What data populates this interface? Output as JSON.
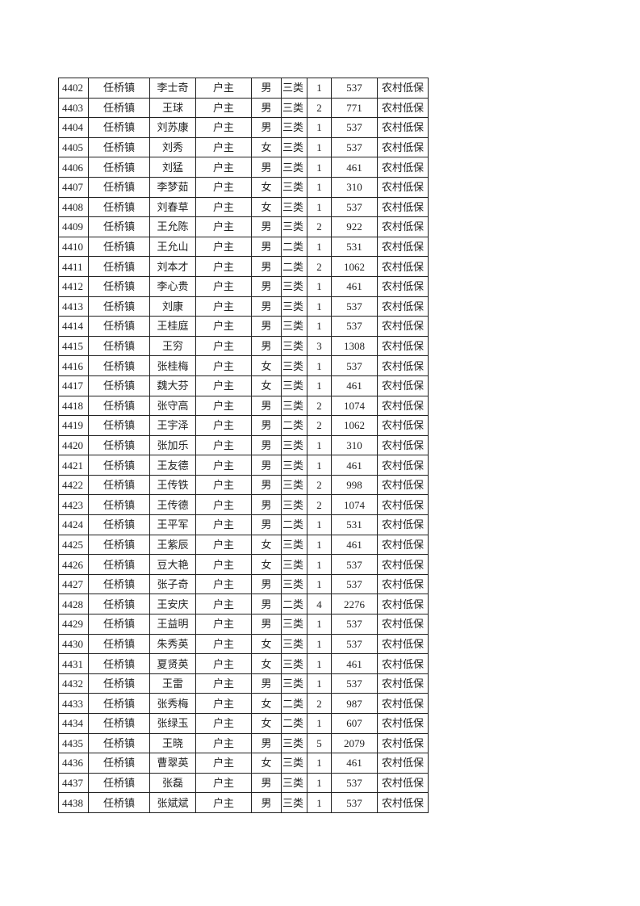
{
  "table": {
    "rows": [
      [
        "4402",
        "任桥镇",
        "李士奇",
        "户主",
        "男",
        "三类",
        "1",
        "537",
        "农村低保"
      ],
      [
        "4403",
        "任桥镇",
        "王球",
        "户主",
        "男",
        "三类",
        "2",
        "771",
        "农村低保"
      ],
      [
        "4404",
        "任桥镇",
        "刘苏康",
        "户主",
        "男",
        "三类",
        "1",
        "537",
        "农村低保"
      ],
      [
        "4405",
        "任桥镇",
        "刘秀",
        "户主",
        "女",
        "三类",
        "1",
        "537",
        "农村低保"
      ],
      [
        "4406",
        "任桥镇",
        "刘猛",
        "户主",
        "男",
        "三类",
        "1",
        "461",
        "农村低保"
      ],
      [
        "4407",
        "任桥镇",
        "李梦茹",
        "户主",
        "女",
        "三类",
        "1",
        "310",
        "农村低保"
      ],
      [
        "4408",
        "任桥镇",
        "刘春草",
        "户主",
        "女",
        "三类",
        "1",
        "537",
        "农村低保"
      ],
      [
        "4409",
        "任桥镇",
        "王允陈",
        "户主",
        "男",
        "三类",
        "2",
        "922",
        "农村低保"
      ],
      [
        "4410",
        "任桥镇",
        "王允山",
        "户主",
        "男",
        "二类",
        "1",
        "531",
        "农村低保"
      ],
      [
        "4411",
        "任桥镇",
        "刘本才",
        "户主",
        "男",
        "二类",
        "2",
        "1062",
        "农村低保"
      ],
      [
        "4412",
        "任桥镇",
        "李心贵",
        "户主",
        "男",
        "三类",
        "1",
        "461",
        "农村低保"
      ],
      [
        "4413",
        "任桥镇",
        "刘康",
        "户主",
        "男",
        "三类",
        "1",
        "537",
        "农村低保"
      ],
      [
        "4414",
        "任桥镇",
        "王桂庭",
        "户主",
        "男",
        "三类",
        "1",
        "537",
        "农村低保"
      ],
      [
        "4415",
        "任桥镇",
        "王穷",
        "户主",
        "男",
        "三类",
        "3",
        "1308",
        "农村低保"
      ],
      [
        "4416",
        "任桥镇",
        "张桂梅",
        "户主",
        "女",
        "三类",
        "1",
        "537",
        "农村低保"
      ],
      [
        "4417",
        "任桥镇",
        "魏大芬",
        "户主",
        "女",
        "三类",
        "1",
        "461",
        "农村低保"
      ],
      [
        "4418",
        "任桥镇",
        "张守高",
        "户主",
        "男",
        "三类",
        "2",
        "1074",
        "农村低保"
      ],
      [
        "4419",
        "任桥镇",
        "王宇泽",
        "户主",
        "男",
        "二类",
        "2",
        "1062",
        "农村低保"
      ],
      [
        "4420",
        "任桥镇",
        "张加乐",
        "户主",
        "男",
        "三类",
        "1",
        "310",
        "农村低保"
      ],
      [
        "4421",
        "任桥镇",
        "王友德",
        "户主",
        "男",
        "三类",
        "1",
        "461",
        "农村低保"
      ],
      [
        "4422",
        "任桥镇",
        "王传铁",
        "户主",
        "男",
        "三类",
        "2",
        "998",
        "农村低保"
      ],
      [
        "4423",
        "任桥镇",
        "王传德",
        "户主",
        "男",
        "三类",
        "2",
        "1074",
        "农村低保"
      ],
      [
        "4424",
        "任桥镇",
        "王平军",
        "户主",
        "男",
        "二类",
        "1",
        "531",
        "农村低保"
      ],
      [
        "4425",
        "任桥镇",
        "王紫辰",
        "户主",
        "女",
        "三类",
        "1",
        "461",
        "农村低保"
      ],
      [
        "4426",
        "任桥镇",
        "豆大艳",
        "户主",
        "女",
        "三类",
        "1",
        "537",
        "农村低保"
      ],
      [
        "4427",
        "任桥镇",
        "张子奇",
        "户主",
        "男",
        "三类",
        "1",
        "537",
        "农村低保"
      ],
      [
        "4428",
        "任桥镇",
        "王安庆",
        "户主",
        "男",
        "二类",
        "4",
        "2276",
        "农村低保"
      ],
      [
        "4429",
        "任桥镇",
        "王益明",
        "户主",
        "男",
        "三类",
        "1",
        "537",
        "农村低保"
      ],
      [
        "4430",
        "任桥镇",
        "朱秀英",
        "户主",
        "女",
        "三类",
        "1",
        "537",
        "农村低保"
      ],
      [
        "4431",
        "任桥镇",
        "夏贤英",
        "户主",
        "女",
        "三类",
        "1",
        "461",
        "农村低保"
      ],
      [
        "4432",
        "任桥镇",
        "王雷",
        "户主",
        "男",
        "三类",
        "1",
        "537",
        "农村低保"
      ],
      [
        "4433",
        "任桥镇",
        "张秀梅",
        "户主",
        "女",
        "二类",
        "2",
        "987",
        "农村低保"
      ],
      [
        "4434",
        "任桥镇",
        "张绿玉",
        "户主",
        "女",
        "二类",
        "1",
        "607",
        "农村低保"
      ],
      [
        "4435",
        "任桥镇",
        "王晓",
        "户主",
        "男",
        "三类",
        "5",
        "2079",
        "农村低保"
      ],
      [
        "4436",
        "任桥镇",
        "曹翠英",
        "户主",
        "女",
        "三类",
        "1",
        "461",
        "农村低保"
      ],
      [
        "4437",
        "任桥镇",
        "张磊",
        "户主",
        "男",
        "三类",
        "1",
        "537",
        "农村低保"
      ],
      [
        "4438",
        "任桥镇",
        "张斌斌",
        "户主",
        "男",
        "三类",
        "1",
        "537",
        "农村低保"
      ]
    ]
  }
}
